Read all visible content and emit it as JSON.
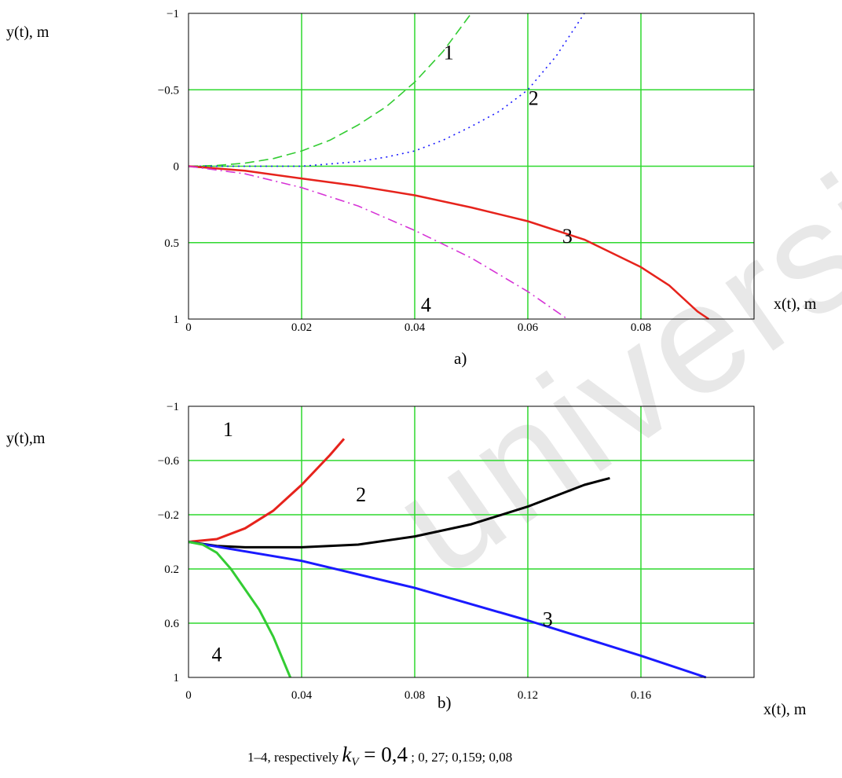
{
  "chart_data": [
    {
      "type": "line",
      "panel_label": "a)",
      "ylabel": "y(t), m",
      "xlabel": "x(t), m",
      "xlim": [
        0,
        0.1
      ],
      "ylim_top": -1,
      "ylim_bottom": 1,
      "x_ticks": [
        "0",
        "0.02",
        "0.04",
        "0.06",
        "0.08"
      ],
      "x_tick_values": [
        0,
        0.02,
        0.04,
        0.06,
        0.08
      ],
      "y_ticks": [
        "−1",
        "−0.5",
        "0",
        "0.5",
        "1"
      ],
      "y_tick_values": [
        -1,
        -0.5,
        0,
        0.5,
        1
      ],
      "grid": true,
      "series": [
        {
          "name": "1",
          "color": "#33cc33",
          "style": "dashed",
          "x": [
            0,
            0.005,
            0.01,
            0.015,
            0.02,
            0.025,
            0.03,
            0.035,
            0.04,
            0.045,
            0.05
          ],
          "y": [
            0,
            -0.005,
            -0.02,
            -0.05,
            -0.1,
            -0.17,
            -0.27,
            -0.39,
            -0.55,
            -0.75,
            -1.0
          ]
        },
        {
          "name": "2",
          "color": "#1a1aff",
          "style": "dotted",
          "x": [
            0,
            0.01,
            0.02,
            0.03,
            0.035,
            0.04,
            0.045,
            0.05,
            0.055,
            0.06,
            0.065,
            0.07
          ],
          "y": [
            0,
            0,
            0,
            -0.03,
            -0.06,
            -0.1,
            -0.17,
            -0.26,
            -0.36,
            -0.5,
            -0.72,
            -1.0
          ]
        },
        {
          "name": "3",
          "color": "#e6231c",
          "style": "solid",
          "x": [
            0,
            0.01,
            0.02,
            0.03,
            0.04,
            0.05,
            0.06,
            0.07,
            0.08,
            0.085,
            0.09,
            0.092
          ],
          "y": [
            0,
            0.03,
            0.08,
            0.13,
            0.19,
            0.27,
            0.36,
            0.48,
            0.66,
            0.78,
            0.95,
            1.0
          ]
        },
        {
          "name": "4",
          "color": "#d633d6",
          "style": "dashdot",
          "x": [
            0,
            0.01,
            0.02,
            0.03,
            0.04,
            0.05,
            0.06,
            0.067
          ],
          "y": [
            0,
            0.05,
            0.14,
            0.26,
            0.42,
            0.6,
            0.82,
            1.0
          ]
        }
      ]
    },
    {
      "type": "line",
      "panel_label": "b)",
      "ylabel": "y(t),m",
      "xlabel": "x(t), m",
      "xlim": [
        0,
        0.2
      ],
      "ylim_top": -1,
      "ylim_bottom": 1,
      "x_ticks": [
        "0",
        "0.04",
        "0.08",
        "0.12",
        "0.16"
      ],
      "x_tick_values": [
        0,
        0.04,
        0.08,
        0.12,
        0.16
      ],
      "y_ticks": [
        "−1",
        "−0.6",
        "−0.2",
        "0.2",
        "0.6",
        "1"
      ],
      "y_tick_values": [
        -1,
        -0.6,
        -0.2,
        0.2,
        0.6,
        1
      ],
      "grid": true,
      "series": [
        {
          "name": "1",
          "color": "#e6231c",
          "style": "solid",
          "x": [
            0,
            0.01,
            0.02,
            0.03,
            0.04,
            0.05,
            0.055
          ],
          "y": [
            0,
            -0.02,
            -0.1,
            -0.23,
            -0.42,
            -0.64,
            -0.76
          ]
        },
        {
          "name": "2",
          "color": "#000000",
          "style": "solid",
          "x": [
            0,
            0.01,
            0.02,
            0.03,
            0.04,
            0.06,
            0.08,
            0.1,
            0.12,
            0.14,
            0.149
          ],
          "y": [
            0,
            0.03,
            0.04,
            0.04,
            0.04,
            0.02,
            -0.04,
            -0.13,
            -0.26,
            -0.42,
            -0.47
          ]
        },
        {
          "name": "3",
          "color": "#1a1aff",
          "style": "solid",
          "x": [
            0,
            0.04,
            0.08,
            0.12,
            0.16,
            0.183
          ],
          "y": [
            0,
            0.14,
            0.34,
            0.58,
            0.84,
            1.0
          ]
        },
        {
          "name": "4",
          "color": "#33cc33",
          "style": "solid",
          "x": [
            0,
            0.005,
            0.01,
            0.015,
            0.02,
            0.025,
            0.03,
            0.036
          ],
          "y": [
            0,
            0.02,
            0.08,
            0.2,
            0.35,
            0.5,
            0.7,
            1.0
          ]
        }
      ]
    }
  ],
  "caption": {
    "prefix": "1–4, respectively",
    "k": "k",
    "sub": "V",
    "eq": " = 0,4",
    "rest": "; 0, 27; 0,159; 0,08"
  },
  "watermark": "university"
}
